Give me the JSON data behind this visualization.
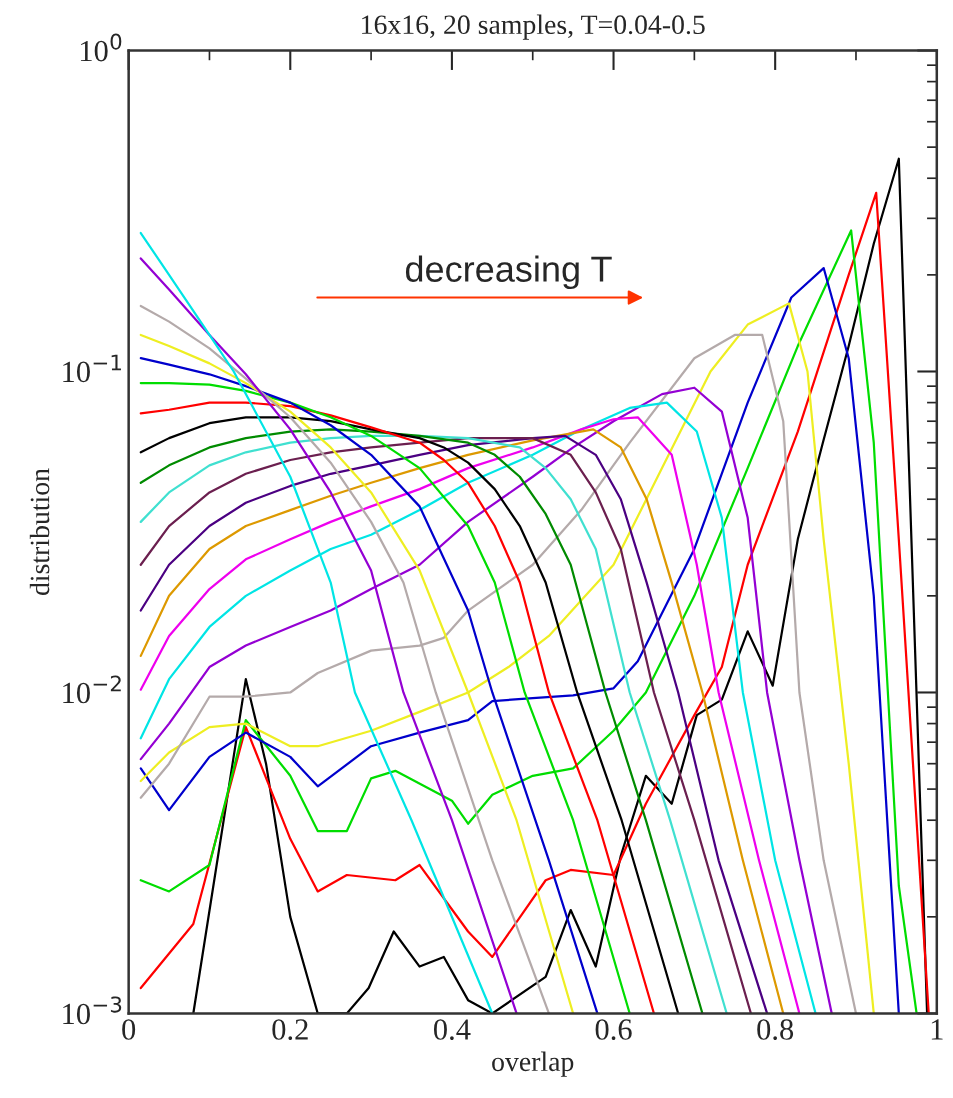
{
  "chart_data": {
    "type": "line",
    "title": "16x16, 20 samples, T=0.04-0.5",
    "xlabel": "overlap",
    "ylabel": "distribution",
    "log": "y",
    "xlim": [
      0,
      1
    ],
    "ylim": [
      0.001,
      1
    ],
    "xticks": [
      0,
      0.2,
      0.4,
      0.6,
      0.8,
      1
    ],
    "yticks": [
      {
        "value": 0.001,
        "label": "10$^{−3}$"
      },
      {
        "value": 0.01,
        "label": "10$^{−2}$"
      },
      {
        "value": 0.1,
        "label": "10$^{−1}$"
      },
      {
        "value": 1,
        "label": "10$^{0}$"
      }
    ],
    "grid": false,
    "marker": "none",
    "line_style": "solid",
    "annotations": [
      "decreasing T"
    ],
    "series": [
      {
        "color": "#000000",
        "x": [
          0.08,
          0.145,
          0.17,
          0.2,
          0.234,
          0.27,
          0.297,
          0.328,
          0.36,
          0.39,
          0.42,
          0.45,
          0.516,
          0.547,
          0.578,
          0.609,
          0.64,
          0.672,
          0.703,
          0.734,
          0.766,
          0.797,
          0.828,
          0.859,
          0.891,
          0.922,
          0.953,
          0.988
        ],
        "values": [
          0.001,
          0.011,
          0.006,
          0.002,
          0.001,
          0.001,
          0.0012,
          0.0018,
          0.0014,
          0.0015,
          0.0011,
          0.001,
          0.0013,
          0.0021,
          0.0014,
          0.0031,
          0.0055,
          0.0045,
          0.0085,
          0.0095,
          0.0155,
          0.0105,
          0.03,
          0.06,
          0.12,
          0.25,
          0.46,
          0.001
        ]
      },
      {
        "color": "#ff0000",
        "x": [
          0.015,
          0.08,
          0.145,
          0.2,
          0.234,
          0.27,
          0.33,
          0.36,
          0.42,
          0.45,
          0.516,
          0.547,
          0.6,
          0.64,
          0.7,
          0.734,
          0.766,
          0.828,
          0.891,
          0.925,
          0.953,
          0.99
        ],
        "values": [
          0.0012,
          0.0019,
          0.0078,
          0.0035,
          0.0024,
          0.0027,
          0.0026,
          0.0029,
          0.0018,
          0.0015,
          0.0026,
          0.0028,
          0.0027,
          0.0045,
          0.0085,
          0.012,
          0.025,
          0.065,
          0.2,
          0.36,
          0.03,
          0.001
        ]
      },
      {
        "color": "#00dd00",
        "x": [
          0.015,
          0.05,
          0.1,
          0.145,
          0.2,
          0.234,
          0.27,
          0.3,
          0.33,
          0.4,
          0.42,
          0.45,
          0.5,
          0.55,
          0.6,
          0.64,
          0.7,
          0.766,
          0.828,
          0.894,
          0.922,
          0.953,
          0.975
        ],
        "values": [
          0.0026,
          0.0024,
          0.0029,
          0.0082,
          0.0055,
          0.0037,
          0.0037,
          0.0054,
          0.0057,
          0.0046,
          0.0039,
          0.0048,
          0.0055,
          0.0058,
          0.0076,
          0.01,
          0.02,
          0.05,
          0.12,
          0.275,
          0.06,
          0.0025,
          0.001
        ]
      },
      {
        "color": "#0000cc",
        "x": [
          0.015,
          0.05,
          0.1,
          0.145,
          0.2,
          0.234,
          0.3,
          0.36,
          0.42,
          0.45,
          0.5,
          0.55,
          0.6,
          0.63,
          0.7,
          0.766,
          0.82,
          0.86,
          0.891,
          0.922,
          0.953
        ],
        "values": [
          0.0058,
          0.0043,
          0.0063,
          0.0075,
          0.0063,
          0.0051,
          0.0068,
          0.0075,
          0.0082,
          0.0094,
          0.0096,
          0.0098,
          0.0103,
          0.0125,
          0.028,
          0.08,
          0.17,
          0.21,
          0.11,
          0.02,
          0.001
        ]
      },
      {
        "color": "#eeee22",
        "x": [
          0.015,
          0.05,
          0.1,
          0.145,
          0.2,
          0.234,
          0.3,
          0.36,
          0.42,
          0.47,
          0.52,
          0.6,
          0.66,
          0.72,
          0.766,
          0.817,
          0.84,
          0.86,
          0.891,
          0.922
        ],
        "values": [
          0.0053,
          0.0065,
          0.0078,
          0.008,
          0.0068,
          0.0068,
          0.0076,
          0.0087,
          0.01,
          0.012,
          0.015,
          0.025,
          0.05,
          0.1,
          0.14,
          0.163,
          0.1,
          0.03,
          0.006,
          0.001
        ]
      },
      {
        "color": "#b4aaaa",
        "x": [
          0.015,
          0.05,
          0.1,
          0.145,
          0.2,
          0.234,
          0.3,
          0.36,
          0.39,
          0.42,
          0.5,
          0.56,
          0.62,
          0.7,
          0.75,
          0.784,
          0.81,
          0.83,
          0.86,
          0.9
        ],
        "values": [
          0.0047,
          0.006,
          0.0097,
          0.0097,
          0.01,
          0.0115,
          0.0135,
          0.014,
          0.0148,
          0.018,
          0.025,
          0.037,
          0.06,
          0.11,
          0.13,
          0.13,
          0.07,
          0.01,
          0.003,
          0.001
        ]
      },
      {
        "color": "#9400d3",
        "x": [
          0.015,
          0.05,
          0.1,
          0.145,
          0.2,
          0.25,
          0.3,
          0.36,
          0.42,
          0.5,
          0.55,
          0.6,
          0.66,
          0.7,
          0.734,
          0.766,
          0.79,
          0.83,
          0.87
        ],
        "values": [
          0.0062,
          0.008,
          0.012,
          0.014,
          0.016,
          0.018,
          0.021,
          0.025,
          0.034,
          0.047,
          0.058,
          0.07,
          0.085,
          0.089,
          0.075,
          0.035,
          0.01,
          0.003,
          0.001
        ]
      },
      {
        "color": "#00e5e5",
        "x": [
          0.015,
          0.05,
          0.1,
          0.145,
          0.2,
          0.25,
          0.3,
          0.36,
          0.42,
          0.5,
          0.56,
          0.62,
          0.666,
          0.703,
          0.734,
          0.76,
          0.8,
          0.85
        ],
        "values": [
          0.0072,
          0.011,
          0.016,
          0.02,
          0.024,
          0.028,
          0.031,
          0.037,
          0.045,
          0.055,
          0.066,
          0.077,
          0.08,
          0.065,
          0.035,
          0.01,
          0.003,
          0.001
        ]
      },
      {
        "color": "#ee00ee",
        "x": [
          0.015,
          0.05,
          0.1,
          0.145,
          0.2,
          0.25,
          0.3,
          0.36,
          0.42,
          0.5,
          0.56,
          0.6,
          0.63,
          0.672,
          0.703,
          0.73,
          0.78,
          0.83
        ],
        "values": [
          0.0102,
          0.015,
          0.021,
          0.026,
          0.03,
          0.034,
          0.038,
          0.043,
          0.05,
          0.058,
          0.066,
          0.071,
          0.072,
          0.055,
          0.025,
          0.01,
          0.003,
          0.001
        ]
      },
      {
        "color": "#dd9900",
        "x": [
          0.015,
          0.05,
          0.1,
          0.145,
          0.2,
          0.25,
          0.3,
          0.36,
          0.42,
          0.5,
          0.575,
          0.609,
          0.641,
          0.672,
          0.71,
          0.76,
          0.81
        ],
        "values": [
          0.013,
          0.02,
          0.028,
          0.033,
          0.037,
          0.041,
          0.045,
          0.05,
          0.055,
          0.061,
          0.066,
          0.058,
          0.04,
          0.022,
          0.01,
          0.003,
          0.001
        ]
      },
      {
        "color": "#4b0082",
        "x": [
          0.015,
          0.05,
          0.1,
          0.145,
          0.2,
          0.25,
          0.3,
          0.36,
          0.42,
          0.5,
          0.54,
          0.578,
          0.609,
          0.641,
          0.68,
          0.73,
          0.79
        ],
        "values": [
          0.018,
          0.025,
          0.033,
          0.039,
          0.044,
          0.048,
          0.051,
          0.055,
          0.059,
          0.062,
          0.063,
          0.055,
          0.04,
          0.022,
          0.01,
          0.003,
          0.001
        ]
      },
      {
        "color": "#6b1f4f",
        "x": [
          0.015,
          0.05,
          0.1,
          0.145,
          0.2,
          0.25,
          0.3,
          0.36,
          0.42,
          0.5,
          0.547,
          0.578,
          0.609,
          0.65,
          0.7,
          0.77
        ],
        "values": [
          0.025,
          0.033,
          0.042,
          0.048,
          0.053,
          0.056,
          0.058,
          0.06,
          0.062,
          0.062,
          0.055,
          0.042,
          0.028,
          0.01,
          0.004,
          0.001
        ]
      },
      {
        "color": "#40e0d0",
        "x": [
          0.015,
          0.05,
          0.1,
          0.145,
          0.2,
          0.25,
          0.3,
          0.36,
          0.42,
          0.484,
          0.516,
          0.547,
          0.578,
          0.62,
          0.67,
          0.74
        ],
        "values": [
          0.034,
          0.042,
          0.051,
          0.056,
          0.06,
          0.062,
          0.063,
          0.063,
          0.062,
          0.058,
          0.05,
          0.04,
          0.028,
          0.01,
          0.004,
          0.001
        ]
      },
      {
        "color": "#008b00",
        "x": [
          0.015,
          0.05,
          0.1,
          0.145,
          0.2,
          0.25,
          0.3,
          0.36,
          0.42,
          0.453,
          0.484,
          0.516,
          0.547,
          0.59,
          0.64,
          0.71
        ],
        "values": [
          0.045,
          0.051,
          0.058,
          0.062,
          0.065,
          0.066,
          0.065,
          0.063,
          0.06,
          0.055,
          0.047,
          0.036,
          0.025,
          0.01,
          0.004,
          0.001
        ]
      },
      {
        "color": "#000000",
        "x": [
          0.015,
          0.05,
          0.1,
          0.145,
          0.2,
          0.25,
          0.3,
          0.36,
          0.39,
          0.42,
          0.453,
          0.484,
          0.516,
          0.555,
          0.61,
          0.68
        ],
        "values": [
          0.056,
          0.062,
          0.069,
          0.072,
          0.072,
          0.07,
          0.066,
          0.062,
          0.058,
          0.052,
          0.043,
          0.033,
          0.022,
          0.01,
          0.004,
          0.001
        ]
      },
      {
        "color": "#ff0000",
        "x": [
          0.015,
          0.05,
          0.1,
          0.145,
          0.2,
          0.25,
          0.3,
          0.36,
          0.39,
          0.42,
          0.453,
          0.484,
          0.52,
          0.58,
          0.65
        ],
        "values": [
          0.074,
          0.076,
          0.08,
          0.08,
          0.078,
          0.073,
          0.067,
          0.06,
          0.053,
          0.045,
          0.033,
          0.022,
          0.01,
          0.004,
          0.001
        ]
      },
      {
        "color": "#00dd00",
        "x": [
          0.015,
          0.05,
          0.1,
          0.145,
          0.2,
          0.25,
          0.3,
          0.36,
          0.42,
          0.453,
          0.49,
          0.55,
          0.62
        ],
        "values": [
          0.092,
          0.092,
          0.091,
          0.087,
          0.08,
          0.072,
          0.063,
          0.05,
          0.033,
          0.022,
          0.01,
          0.004,
          0.001
        ]
      },
      {
        "color": "#0000cc",
        "x": [
          0.015,
          0.05,
          0.1,
          0.145,
          0.2,
          0.25,
          0.3,
          0.36,
          0.42,
          0.45,
          0.52,
          0.58
        ],
        "values": [
          0.11,
          0.105,
          0.098,
          0.09,
          0.08,
          0.068,
          0.055,
          0.038,
          0.018,
          0.01,
          0.003,
          0.001
        ]
      },
      {
        "color": "#eeee22",
        "x": [
          0.015,
          0.05,
          0.1,
          0.145,
          0.2,
          0.25,
          0.3,
          0.36,
          0.42,
          0.48,
          0.55
        ],
        "values": [
          0.13,
          0.12,
          0.106,
          0.092,
          0.075,
          0.058,
          0.042,
          0.024,
          0.01,
          0.004,
          0.001
        ]
      },
      {
        "color": "#b4aaaa",
        "x": [
          0.015,
          0.05,
          0.1,
          0.145,
          0.2,
          0.25,
          0.3,
          0.34,
          0.38,
          0.45,
          0.52
        ],
        "values": [
          0.16,
          0.143,
          0.118,
          0.095,
          0.072,
          0.052,
          0.034,
          0.022,
          0.01,
          0.003,
          0.001
        ]
      },
      {
        "color": "#9400d3",
        "x": [
          0.015,
          0.05,
          0.1,
          0.145,
          0.2,
          0.25,
          0.3,
          0.34,
          0.4,
          0.48
        ],
        "values": [
          0.225,
          0.18,
          0.13,
          0.098,
          0.066,
          0.042,
          0.024,
          0.01,
          0.004,
          0.001
        ]
      },
      {
        "color": "#00e5e5",
        "x": [
          0.015,
          0.05,
          0.1,
          0.13,
          0.2,
          0.25,
          0.28,
          0.35,
          0.45
        ],
        "values": [
          0.27,
          0.2,
          0.13,
          0.1,
          0.047,
          0.022,
          0.01,
          0.004,
          0.001
        ]
      }
    ]
  }
}
